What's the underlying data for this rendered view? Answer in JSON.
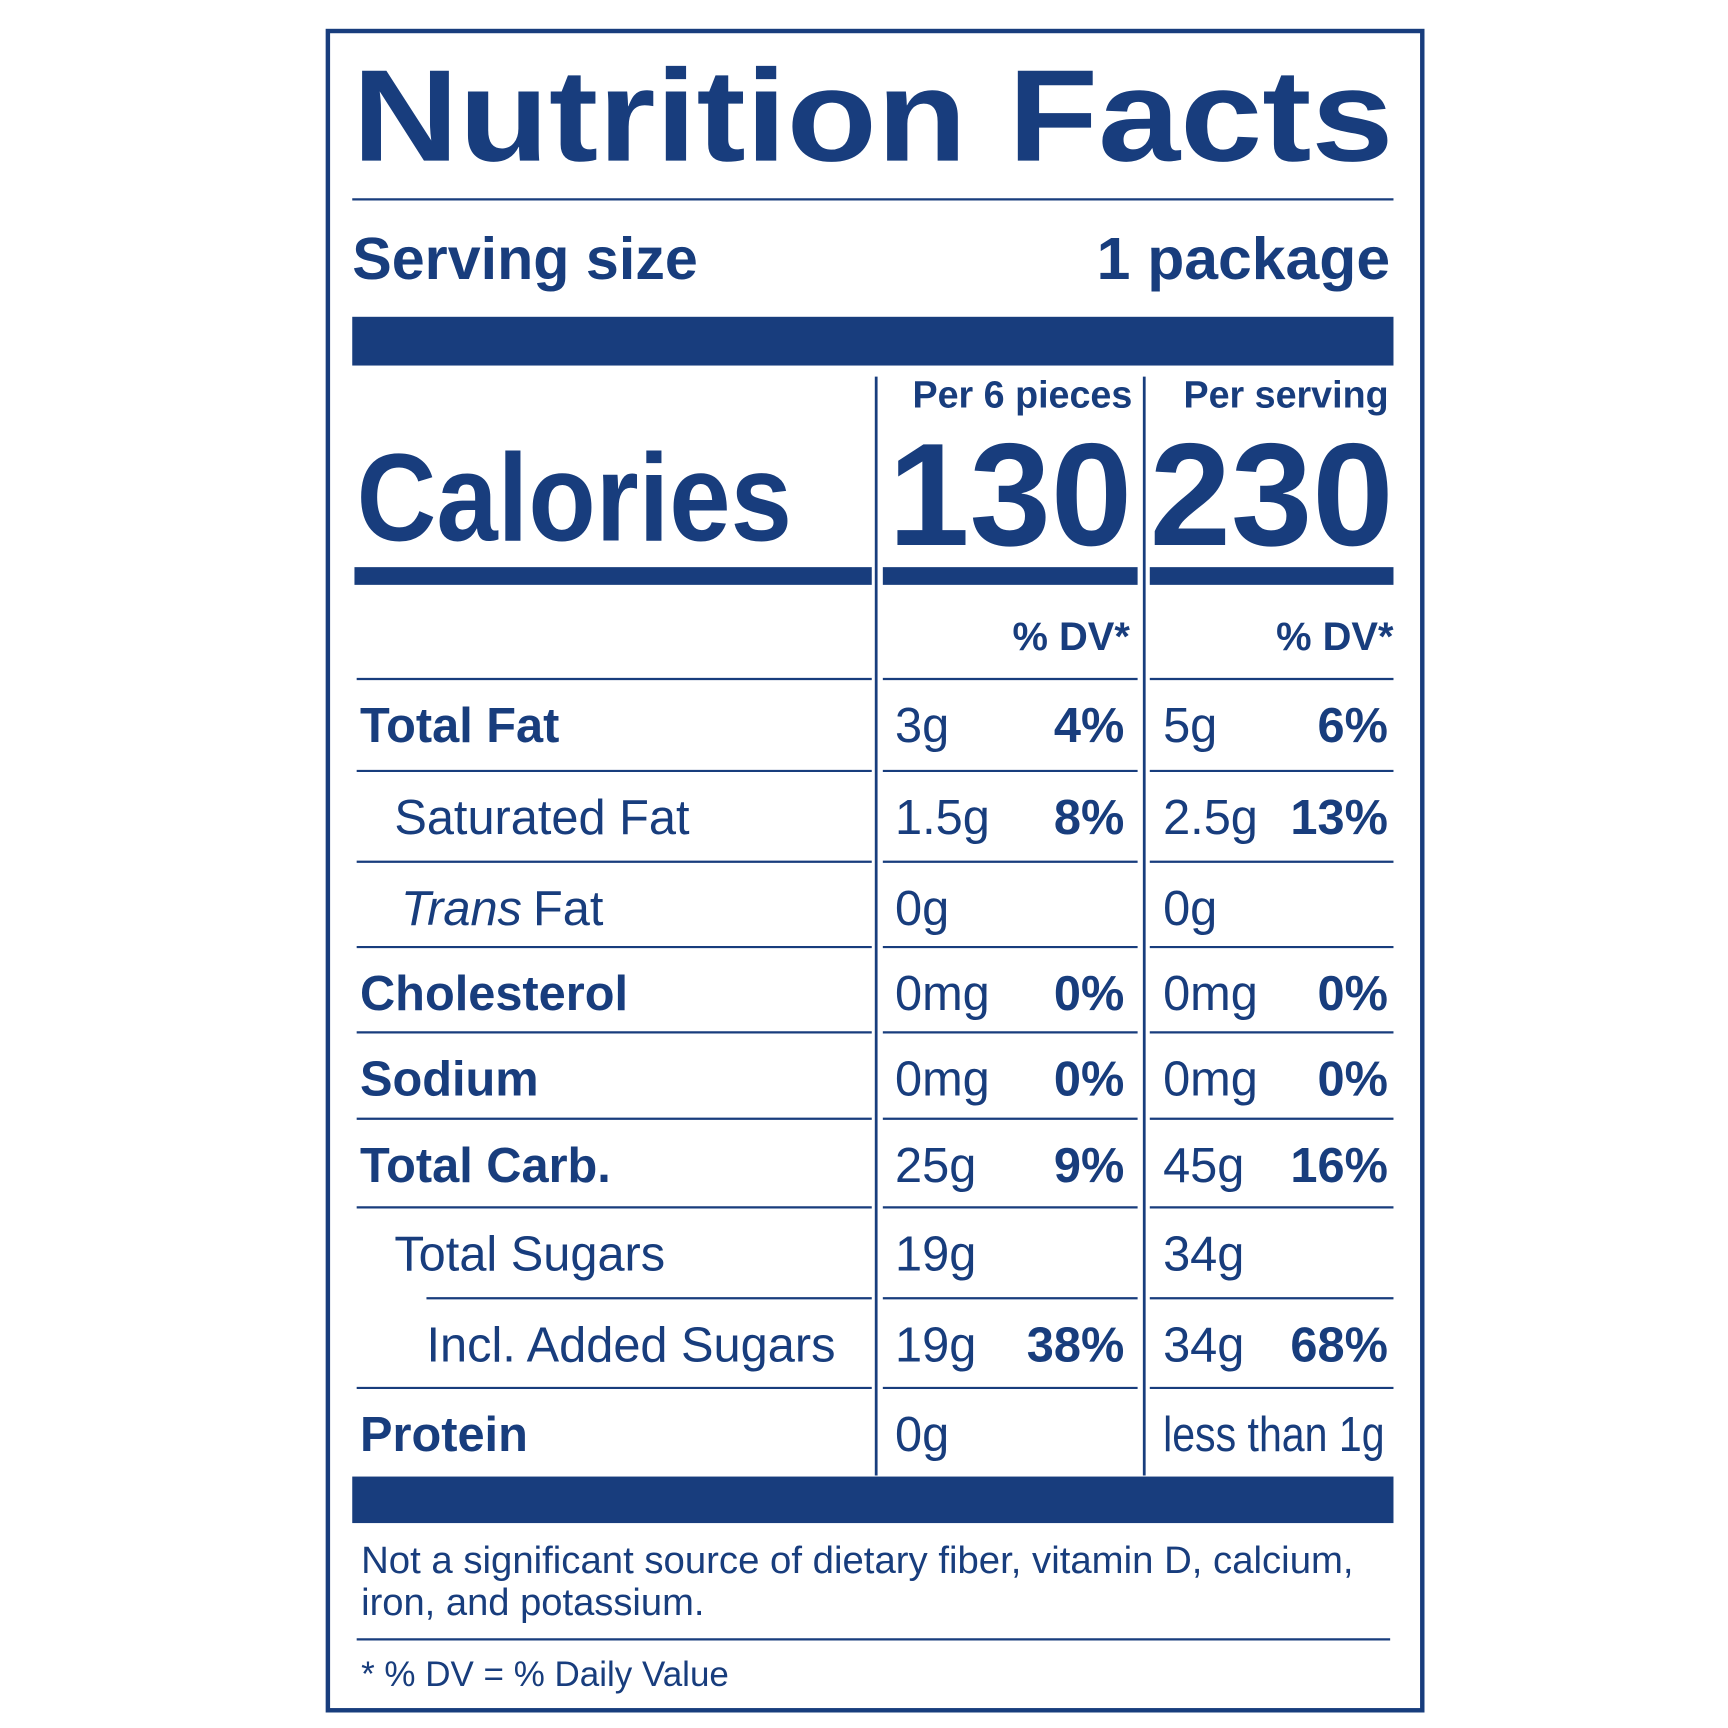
{
  "title": "Nutrition Facts",
  "serving": {
    "label": "Serving size",
    "value": "1 package"
  },
  "columns": [
    {
      "header": "Per 6 pieces",
      "calories": 130,
      "dv_header": "% DV*"
    },
    {
      "header": "Per serving",
      "calories": 230,
      "dv_header": "% DV*"
    }
  ],
  "calories_label": "Calories",
  "rows": [
    {
      "name": "Total Fat",
      "bold": true,
      "indent": 0,
      "amounts": [
        "3g",
        "5g"
      ],
      "dv": [
        "4%",
        "6%"
      ]
    },
    {
      "name": "Saturated Fat",
      "bold": false,
      "indent": 1,
      "amounts": [
        "1.5g",
        "2.5g"
      ],
      "dv": [
        "8%",
        "13%"
      ]
    },
    {
      "name_emphasis": "Trans",
      "name": "Fat",
      "bold": false,
      "indent": 1,
      "amounts": [
        "0g",
        "0g"
      ]
    },
    {
      "name": "Cholesterol",
      "bold": true,
      "indent": 0,
      "amounts": [
        "0mg",
        "0mg"
      ],
      "dv": [
        "0%",
        "0%"
      ]
    },
    {
      "name": "Sodium",
      "bold": true,
      "indent": 0,
      "amounts": [
        "0mg",
        "0mg"
      ],
      "dv": [
        "0%",
        "0%"
      ]
    },
    {
      "name": "Total Carb.",
      "bold": true,
      "indent": 0,
      "amounts": [
        "25g",
        "45g"
      ],
      "dv": [
        "9%",
        "16%"
      ]
    },
    {
      "name": "Total Sugars",
      "bold": false,
      "indent": 1,
      "amounts": [
        "19g",
        "34g"
      ]
    },
    {
      "name": "Incl. Added Sugars",
      "bold": false,
      "indent": 2,
      "amounts": [
        "19g",
        "34g"
      ],
      "dv": [
        "38%",
        "68%"
      ]
    },
    {
      "name": "Protein",
      "bold": true,
      "indent": 0,
      "amounts": [
        "0g",
        "less than 1g"
      ]
    }
  ],
  "footnote": [
    "Not a significant source of dietary fiber, vitamin D, calcium,",
    "iron, and potassium."
  ],
  "dv_note": "* % DV = % Daily Value"
}
